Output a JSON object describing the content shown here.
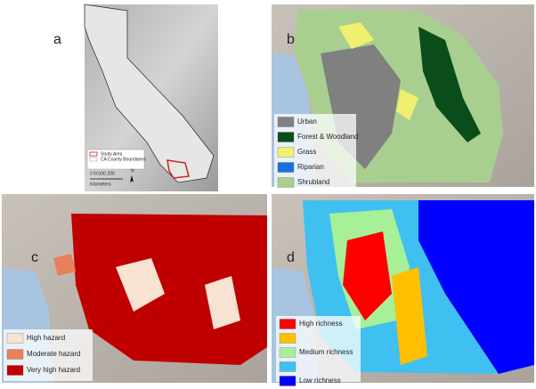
{
  "panels": [
    {
      "label": "a",
      "legend": [
        {
          "label": "Study Area",
          "color": "#d02020"
        },
        {
          "label": "CA County Boundaries",
          "color": "#bbbbbb"
        }
      ],
      "scale": "0 50100 200",
      "scale_unit": "Kilometers",
      "north": "N"
    },
    {
      "label": "b",
      "legend": [
        {
          "label": "Urban",
          "color": "#808080"
        },
        {
          "label": "Forest & Woodland",
          "color": "#0b4d1a"
        },
        {
          "label": "Grass",
          "color": "#f0f070"
        },
        {
          "label": "Riparian",
          "color": "#1a6fe0"
        },
        {
          "label": "Shrubland",
          "color": "#a8cf90"
        }
      ]
    },
    {
      "label": "c",
      "legend": [
        {
          "label": "High hazard",
          "color": "#f8e2d2"
        },
        {
          "label": "Moderate hazard",
          "color": "#e8805a"
        },
        {
          "label": "Very high hazard",
          "color": "#c00000"
        }
      ]
    },
    {
      "label": "d",
      "legend": [
        {
          "label": "High richness",
          "color": "#ff0000"
        },
        {
          "label": null,
          "color": "#ffc000"
        },
        {
          "label": "Medium richness",
          "color": "#a8f098"
        },
        {
          "label": null,
          "color": "#40c0f0"
        },
        {
          "label": "Low richness",
          "color": "#0000ff"
        }
      ]
    }
  ]
}
